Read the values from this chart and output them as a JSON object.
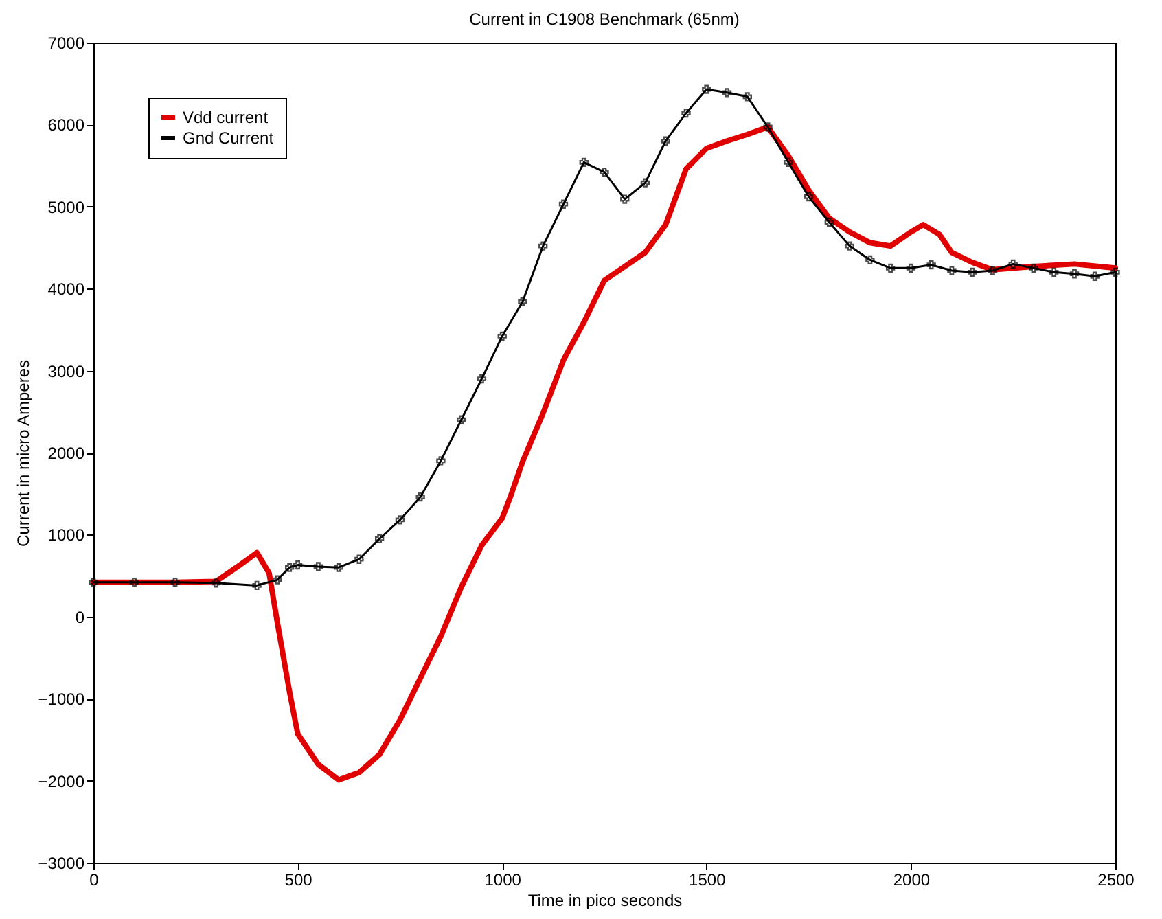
{
  "chart_data": {
    "type": "line",
    "title": "Current in C1908 Benchmark (65nm)",
    "xlabel": "Time in pico seconds",
    "ylabel": "Current in micro Amperes",
    "xlim": [
      0,
      2500
    ],
    "xticks": [
      0,
      500,
      1000,
      1500,
      2000,
      2500
    ],
    "ylim": [
      -3000,
      7000
    ],
    "yticks": [
      -3000,
      -2000,
      -1000,
      0,
      1000,
      2000,
      3000,
      4000,
      5000,
      6000,
      7000
    ],
    "grid": false,
    "legend": "top left",
    "series": [
      {
        "name": "Vdd current",
        "color": "#e00000",
        "marker": "none",
        "x": [
          0,
          100,
          200,
          300,
          350,
          400,
          430,
          450,
          480,
          500,
          550,
          600,
          650,
          700,
          750,
          800,
          850,
          900,
          950,
          1000,
          1020,
          1050,
          1100,
          1150,
          1200,
          1250,
          1300,
          1350,
          1400,
          1450,
          1500,
          1550,
          1600,
          1650,
          1700,
          1750,
          1800,
          1850,
          1900,
          1950,
          2000,
          2030,
          2070,
          2100,
          2150,
          2200,
          2300,
          2400,
          2500
        ],
        "values": [
          420,
          420,
          420,
          430,
          600,
          780,
          530,
          -70,
          -920,
          -1430,
          -1800,
          -1990,
          -1900,
          -1680,
          -1260,
          -750,
          -240,
          360,
          870,
          1200,
          1460,
          1890,
          2480,
          3130,
          3590,
          4100,
          4270,
          4440,
          4780,
          5460,
          5710,
          5800,
          5880,
          5970,
          5620,
          5200,
          4860,
          4690,
          4560,
          4520,
          4690,
          4780,
          4660,
          4440,
          4320,
          4230,
          4270,
          4300,
          4250
        ]
      },
      {
        "name": "Gnd Current",
        "color": "#000000",
        "marker": "cross",
        "x": [
          0,
          100,
          200,
          300,
          400,
          450,
          480,
          500,
          550,
          600,
          650,
          700,
          750,
          800,
          850,
          900,
          950,
          1000,
          1050,
          1100,
          1150,
          1200,
          1250,
          1300,
          1350,
          1400,
          1450,
          1500,
          1550,
          1600,
          1650,
          1700,
          1750,
          1800,
          1850,
          1900,
          1950,
          2000,
          2050,
          2100,
          2150,
          2200,
          2250,
          2300,
          2350,
          2400,
          2450,
          2500
        ],
        "values": [
          420,
          420,
          420,
          410,
          380,
          450,
          600,
          630,
          610,
          600,
          700,
          950,
          1180,
          1460,
          1900,
          2400,
          2900,
          3420,
          3840,
          4520,
          5030,
          5540,
          5420,
          5090,
          5290,
          5800,
          6140,
          6430,
          6390,
          6340,
          5970,
          5540,
          5120,
          4810,
          4520,
          4350,
          4250,
          4250,
          4290,
          4220,
          4200,
          4220,
          4300,
          4250,
          4200,
          4180,
          4150,
          4200
        ]
      }
    ]
  }
}
